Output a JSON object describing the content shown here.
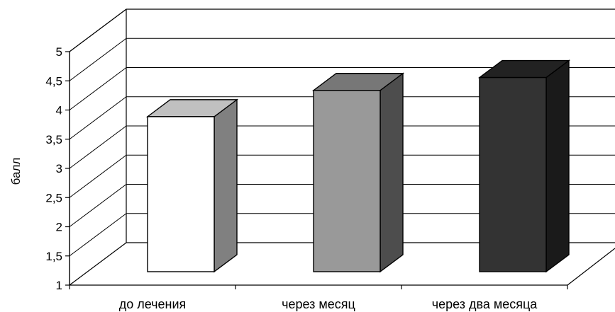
{
  "chart_data": {
    "type": "bar",
    "title": "",
    "xlabel": "",
    "ylabel": "балл",
    "categories": [
      "до лечения",
      "через месяц",
      "через два месяца"
    ],
    "values": [
      3.45,
      3.9,
      4.12
    ],
    "ylim": [
      1,
      5
    ],
    "yticks": [
      "1",
      "1,5",
      "2",
      "2,5",
      "3",
      "3,5",
      "4",
      "4,5",
      "5"
    ],
    "grid": true,
    "legend": "none",
    "style": "3d-column",
    "colors": {
      "bar1_front": "#ffffff",
      "bar1_top": "#c0c0c0",
      "bar1_side": "#808080",
      "bar2_front": "#999999",
      "bar2_top": "#777777",
      "bar2_side": "#4d4d4d",
      "bar3_front": "#333333",
      "bar3_top": "#222222",
      "bar3_side": "#1a1a1a"
    }
  }
}
